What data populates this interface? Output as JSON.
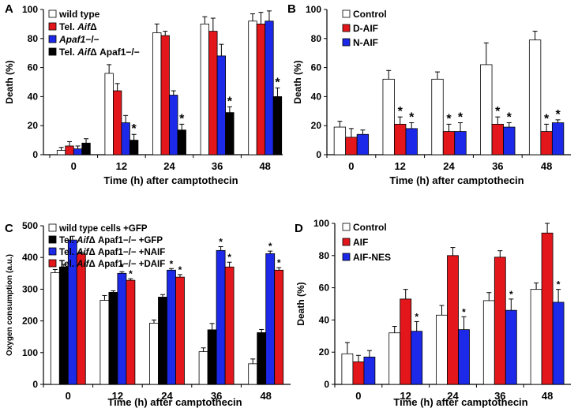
{
  "chart_data": [
    {
      "panel": "A",
      "type": "bar",
      "xlabel": "Time (h) after camptothecin",
      "ylabel": "Death (%)",
      "ylim": [
        0,
        100
      ],
      "yticks": [
        0,
        20,
        40,
        60,
        80,
        100
      ],
      "categories": [
        "0",
        "12",
        "24",
        "36",
        "48"
      ],
      "legend_placement": "top-left",
      "series": [
        {
          "name": "wild type",
          "name_italic_part": "",
          "name_suffix": "",
          "color": "#ffffff",
          "values": [
            3,
            56,
            84,
            90,
            92
          ],
          "errors": [
            2,
            6,
            6,
            5,
            5
          ],
          "sig": [
            false,
            false,
            false,
            false,
            false
          ]
        },
        {
          "name": "Tel. ",
          "name_italic_part": "Aif",
          "name_suffix": "Δ",
          "color": "#e3171b",
          "values": [
            6,
            44,
            82,
            85,
            90
          ],
          "errors": [
            3,
            5,
            3,
            9,
            8
          ],
          "sig": [
            false,
            false,
            false,
            false,
            false
          ]
        },
        {
          "name": "",
          "name_italic_part": "Apaf1",
          "name_suffix": "−/−",
          "color": "#1c29e8",
          "values": [
            4,
            22,
            41,
            68,
            92
          ],
          "errors": [
            2,
            5,
            3,
            8,
            7
          ],
          "sig": [
            false,
            false,
            false,
            false,
            false
          ]
        },
        {
          "name": "Tel. ",
          "name_italic_part": "Aif",
          "name_suffix": "Δ Apaf1−/−",
          "color": "#000000",
          "values": [
            8,
            10,
            17,
            29,
            40
          ],
          "errors": [
            3,
            4,
            4,
            4,
            6
          ],
          "sig": [
            false,
            true,
            true,
            true,
            true
          ]
        }
      ]
    },
    {
      "panel": "B",
      "type": "bar",
      "xlabel": "Time (h) after camptothecin",
      "ylabel": "Death (%)",
      "ylim": [
        0,
        100
      ],
      "yticks": [
        0,
        20,
        40,
        60,
        80,
        100
      ],
      "categories": [
        "0",
        "12",
        "24",
        "36",
        "48"
      ],
      "legend_placement": "top-left",
      "series": [
        {
          "name": "Control",
          "name_italic_part": "",
          "name_suffix": "",
          "color": "#ffffff",
          "values": [
            19,
            52,
            52,
            62,
            79
          ],
          "errors": [
            4,
            6,
            5,
            15,
            6
          ],
          "sig": [
            false,
            false,
            false,
            false,
            false
          ]
        },
        {
          "name": "D-AIF",
          "name_italic_part": "",
          "name_suffix": "",
          "color": "#e3171b",
          "values": [
            12,
            21,
            16,
            21,
            16
          ],
          "errors": [
            6,
            5,
            5,
            5,
            5
          ],
          "sig": [
            false,
            true,
            true,
            true,
            true
          ]
        },
        {
          "name": "N-AIF",
          "name_italic_part": "",
          "name_suffix": "",
          "color": "#1c29e8",
          "values": [
            14,
            18,
            16,
            19,
            22
          ],
          "errors": [
            3,
            4,
            6,
            3,
            2
          ],
          "sig": [
            false,
            true,
            true,
            true,
            true
          ]
        }
      ]
    },
    {
      "panel": "C",
      "type": "bar",
      "xlabel": "Time (h) after camptothecin",
      "ylabel": "Oxygen consumption (a.u.)",
      "ylim": [
        0,
        500
      ],
      "yticks": [
        0,
        100,
        200,
        300,
        400,
        500
      ],
      "categories": [
        "0",
        "12",
        "24",
        "36",
        "48"
      ],
      "legend_placement": "top-left",
      "series": [
        {
          "name": "wild type cells +GFP",
          "name_italic_part": "",
          "name_suffix": "",
          "color": "#ffffff",
          "values": [
            352,
            265,
            193,
            103,
            65
          ],
          "errors": [
            10,
            15,
            10,
            12,
            15
          ],
          "sig": [
            false,
            false,
            false,
            false,
            false
          ]
        },
        {
          "name": "Tel. ",
          "name_italic_part": "Aif",
          "name_suffix": "Δ Apaf1−/− +GFP",
          "color": "#000000",
          "values": [
            370,
            290,
            275,
            172,
            163
          ],
          "errors": [
            8,
            5,
            8,
            20,
            10
          ],
          "sig": [
            false,
            false,
            false,
            false,
            false
          ]
        },
        {
          "name": "Tel. ",
          "name_italic_part": "Aif",
          "name_suffix": "Δ Apaf1−/− +NAIF",
          "color": "#1c29e8",
          "values": [
            455,
            350,
            360,
            422,
            412
          ],
          "errors": [
            12,
            5,
            5,
            12,
            8
          ],
          "sig": [
            false,
            true,
            true,
            true,
            true
          ]
        },
        {
          "name": "Tel. ",
          "name_italic_part": "Aif",
          "name_suffix": "Δ Apaf1−/− +DAIF",
          "color": "#e3171b",
          "values": [
            412,
            328,
            338,
            370,
            360
          ],
          "errors": [
            5,
            5,
            8,
            15,
            8
          ],
          "sig": [
            false,
            true,
            true,
            true,
            true
          ]
        }
      ]
    },
    {
      "panel": "D",
      "type": "bar",
      "xlabel": "Time (h) after camptothecin",
      "ylabel": "Death (%)",
      "ylim": [
        0,
        100
      ],
      "yticks": [
        0,
        20,
        40,
        60,
        80,
        100
      ],
      "categories": [
        "0",
        "12",
        "24",
        "36",
        "48"
      ],
      "legend_placement": "top-left",
      "series": [
        {
          "name": "Control",
          "name_italic_part": "",
          "name_suffix": "",
          "color": "#ffffff",
          "values": [
            19,
            32,
            43,
            52,
            59
          ],
          "errors": [
            7,
            4,
            6,
            5,
            4
          ],
          "sig": [
            false,
            false,
            false,
            false,
            false
          ]
        },
        {
          "name": "AIF",
          "name_italic_part": "",
          "name_suffix": "",
          "color": "#e3171b",
          "values": [
            14,
            53,
            80,
            79,
            94
          ],
          "errors": [
            4,
            6,
            5,
            4,
            6
          ],
          "sig": [
            false,
            false,
            false,
            false,
            false
          ]
        },
        {
          "name": "AIF-NES",
          "name_italic_part": "",
          "name_suffix": "",
          "color": "#1c29e8",
          "values": [
            17,
            33,
            34,
            46,
            51
          ],
          "errors": [
            4,
            6,
            8,
            7,
            8
          ],
          "sig": [
            false,
            true,
            true,
            true,
            true
          ]
        }
      ]
    }
  ]
}
